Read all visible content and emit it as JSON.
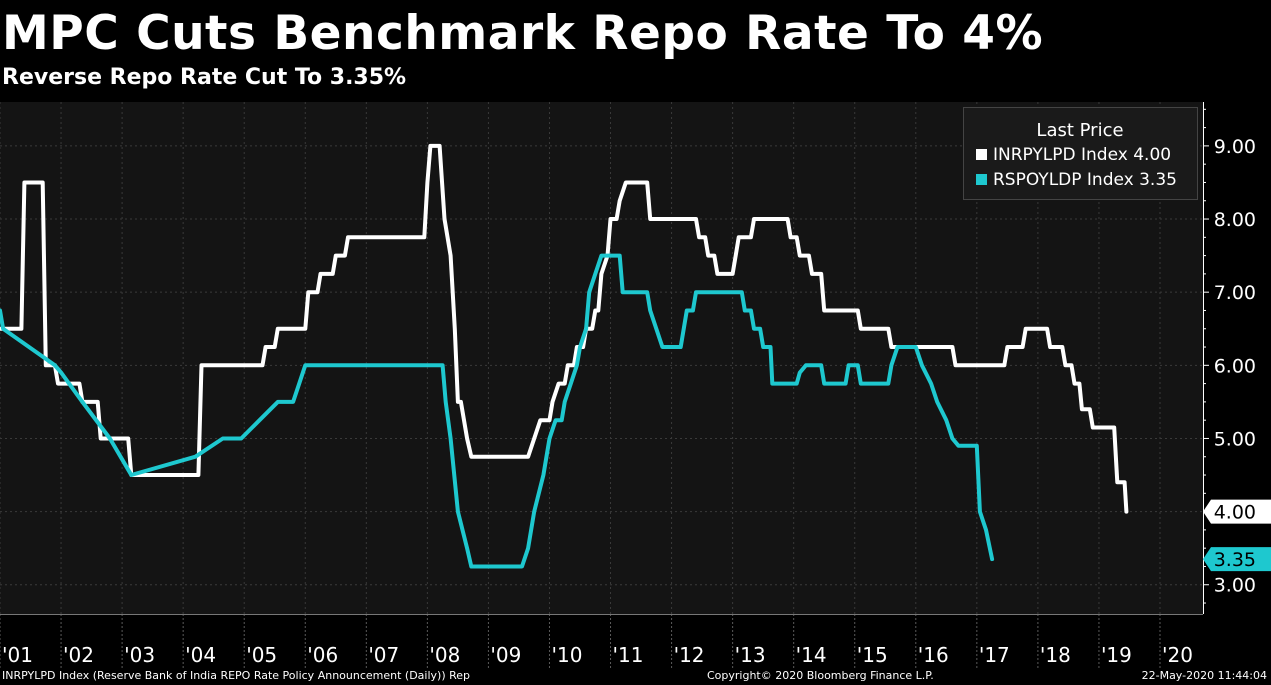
{
  "header": {
    "title": "MPC Cuts Benchmark Repo Rate To 4%",
    "subtitle": "Reverse Repo Rate Cut To 3.35%"
  },
  "footer": {
    "source": "INRPYLPD Index (Reserve Bank of India REPO Rate Policy Announcement (Daily)) Rep",
    "copyright": "Copyright© 2020 Bloomberg Finance L.P.",
    "timestamp": "22-May-2020 11:44:04"
  },
  "colors": {
    "background": "#000000",
    "plot_background": "#141414",
    "grid": "#3a3a3a",
    "repo": "#ffffff",
    "reverse_repo": "#1ec8cf"
  },
  "chart_data": {
    "type": "line",
    "title": "MPC Cuts Benchmark Repo Rate To 4%",
    "subtitle": "Reverse Repo Rate Cut To 3.35%",
    "xlabel": "",
    "ylabel": "",
    "xlim": [
      2001.0,
      2020.65
    ],
    "ylim": [
      2.6,
      9.6
    ],
    "yticks": [
      3,
      4,
      5,
      6,
      7,
      8,
      9
    ],
    "ytick_labels": [
      "3.00",
      "4.00",
      "5.00",
      "6.00",
      "7.00",
      "8.00",
      "9.00"
    ],
    "xticks": [
      {
        "label": "'01",
        "x": 2001.0
      },
      {
        "label": "'02",
        "x": 2002.0
      },
      {
        "label": "'03",
        "x": 2003.0
      },
      {
        "label": "'04",
        "x": 2004.0
      },
      {
        "label": "'05",
        "x": 2005.0
      },
      {
        "label": "'06",
        "x": 2006.0
      },
      {
        "label": "'07",
        "x": 2007.0
      },
      {
        "label": "'08",
        "x": 2008.0
      },
      {
        "label": "'09",
        "x": 2009.0
      },
      {
        "label": "'10",
        "x": 2010.0
      },
      {
        "label": "'11",
        "x": 2011.0
      },
      {
        "label": "'12",
        "x": 2012.0
      },
      {
        "label": "'13",
        "x": 2013.0
      },
      {
        "label": "'14",
        "x": 2014.0
      },
      {
        "label": "'15",
        "x": 2015.0
      },
      {
        "label": "'16",
        "x": 2016.0
      },
      {
        "label": "'17",
        "x": 2017.0
      },
      {
        "label": "'18",
        "x": 2018.0
      },
      {
        "label": "'19",
        "x": 2019.0
      },
      {
        "label": "'20",
        "x": 2020.0
      }
    ],
    "grid": true,
    "legend": {
      "title": "Last Price",
      "position": "top-right",
      "entries": [
        "INRPYLPD Index 4.00",
        "RSPOYLDP Index 3.35"
      ]
    },
    "series": [
      {
        "name": "INRPYLPD Index",
        "color": "#ffffff",
        "last_label": "4.00",
        "points": [
          [
            2001.0,
            6.5
          ],
          [
            2001.35,
            6.5
          ],
          [
            2001.4,
            8.5
          ],
          [
            2001.7,
            8.5
          ],
          [
            2001.75,
            6.0
          ],
          [
            2001.9,
            6.0
          ],
          [
            2001.95,
            5.75
          ],
          [
            2002.3,
            5.75
          ],
          [
            2002.35,
            5.5
          ],
          [
            2002.6,
            5.5
          ],
          [
            2002.65,
            5.0
          ],
          [
            2003.1,
            5.0
          ],
          [
            2003.15,
            4.5
          ],
          [
            2004.25,
            4.5
          ],
          [
            2004.3,
            6.0
          ],
          [
            2005.3,
            6.0
          ],
          [
            2005.35,
            6.25
          ],
          [
            2005.5,
            6.25
          ],
          [
            2005.55,
            6.5
          ],
          [
            2006.0,
            6.5
          ],
          [
            2006.05,
            7.0
          ],
          [
            2006.2,
            7.0
          ],
          [
            2006.25,
            7.25
          ],
          [
            2006.45,
            7.25
          ],
          [
            2006.5,
            7.5
          ],
          [
            2006.65,
            7.5
          ],
          [
            2006.7,
            7.75
          ],
          [
            2007.95,
            7.75
          ],
          [
            2008.0,
            8.5
          ],
          [
            2008.05,
            9.0
          ],
          [
            2008.2,
            9.0
          ],
          [
            2008.28,
            8.0
          ],
          [
            2008.38,
            7.5
          ],
          [
            2008.45,
            6.5
          ],
          [
            2008.5,
            5.5
          ],
          [
            2008.55,
            5.5
          ],
          [
            2008.65,
            5.0
          ],
          [
            2008.72,
            4.75
          ],
          [
            2009.65,
            4.75
          ],
          [
            2009.75,
            5.0
          ],
          [
            2009.85,
            5.25
          ],
          [
            2010.0,
            5.25
          ],
          [
            2010.05,
            5.5
          ],
          [
            2010.15,
            5.75
          ],
          [
            2010.25,
            5.75
          ],
          [
            2010.3,
            6.0
          ],
          [
            2010.4,
            6.0
          ],
          [
            2010.45,
            6.25
          ],
          [
            2010.55,
            6.25
          ],
          [
            2010.6,
            6.5
          ],
          [
            2010.7,
            6.5
          ],
          [
            2010.75,
            6.75
          ],
          [
            2010.8,
            6.75
          ],
          [
            2010.85,
            7.25
          ],
          [
            2010.95,
            7.5
          ],
          [
            2011.0,
            8.0
          ],
          [
            2011.1,
            8.0
          ],
          [
            2011.15,
            8.25
          ],
          [
            2011.25,
            8.5
          ],
          [
            2011.6,
            8.5
          ],
          [
            2011.65,
            8.0
          ],
          [
            2012.4,
            8.0
          ],
          [
            2012.45,
            7.75
          ],
          [
            2012.55,
            7.75
          ],
          [
            2012.6,
            7.5
          ],
          [
            2012.7,
            7.5
          ],
          [
            2012.75,
            7.25
          ],
          [
            2013.0,
            7.25
          ],
          [
            2013.05,
            7.5
          ],
          [
            2013.1,
            7.75
          ],
          [
            2013.3,
            7.75
          ],
          [
            2013.35,
            8.0
          ],
          [
            2013.9,
            8.0
          ],
          [
            2013.95,
            7.75
          ],
          [
            2014.05,
            7.75
          ],
          [
            2014.1,
            7.5
          ],
          [
            2014.25,
            7.5
          ],
          [
            2014.3,
            7.25
          ],
          [
            2014.45,
            7.25
          ],
          [
            2014.5,
            6.75
          ],
          [
            2015.05,
            6.75
          ],
          [
            2015.1,
            6.5
          ],
          [
            2015.55,
            6.5
          ],
          [
            2015.6,
            6.25
          ],
          [
            2016.6,
            6.25
          ],
          [
            2016.65,
            6.0
          ],
          [
            2017.45,
            6.0
          ],
          [
            2017.5,
            6.25
          ],
          [
            2017.75,
            6.25
          ],
          [
            2017.8,
            6.5
          ],
          [
            2018.15,
            6.5
          ],
          [
            2018.2,
            6.25
          ],
          [
            2018.4,
            6.25
          ],
          [
            2018.45,
            6.0
          ],
          [
            2018.55,
            6.0
          ],
          [
            2018.6,
            5.75
          ],
          [
            2018.68,
            5.75
          ],
          [
            2018.72,
            5.4
          ],
          [
            2018.85,
            5.4
          ],
          [
            2018.9,
            5.15
          ],
          [
            2019.25,
            5.15
          ],
          [
            2019.3,
            4.4
          ],
          [
            2019.42,
            4.4
          ],
          [
            2019.45,
            4.0
          ]
        ]
      },
      {
        "name": "RSPOYLDP Index",
        "color": "#1ec8cf",
        "last_label": "3.35",
        "points": [
          [
            2001.0,
            6.75
          ],
          [
            2001.05,
            6.5
          ],
          [
            2001.9,
            6.0
          ],
          [
            2002.0,
            5.9
          ],
          [
            2002.35,
            5.5
          ],
          [
            2002.8,
            5.0
          ],
          [
            2003.15,
            4.5
          ],
          [
            2004.2,
            4.75
          ],
          [
            2004.65,
            5.0
          ],
          [
            2004.95,
            5.0
          ],
          [
            2005.25,
            5.25
          ],
          [
            2005.55,
            5.5
          ],
          [
            2005.8,
            5.5
          ],
          [
            2005.9,
            5.75
          ],
          [
            2006.0,
            6.0
          ],
          [
            2008.25,
            6.0
          ],
          [
            2008.3,
            5.5
          ],
          [
            2008.38,
            5.0
          ],
          [
            2008.5,
            4.0
          ],
          [
            2008.65,
            3.5
          ],
          [
            2008.72,
            3.25
          ],
          [
            2009.55,
            3.25
          ],
          [
            2009.65,
            3.5
          ],
          [
            2009.75,
            4.0
          ],
          [
            2009.9,
            4.5
          ],
          [
            2010.0,
            5.0
          ],
          [
            2010.1,
            5.25
          ],
          [
            2010.2,
            5.25
          ],
          [
            2010.25,
            5.5
          ],
          [
            2010.35,
            5.75
          ],
          [
            2010.45,
            6.0
          ],
          [
            2010.5,
            6.25
          ],
          [
            2010.6,
            6.5
          ],
          [
            2010.65,
            7.0
          ],
          [
            2010.75,
            7.25
          ],
          [
            2010.85,
            7.5
          ],
          [
            2011.15,
            7.5
          ],
          [
            2011.2,
            7.0
          ],
          [
            2011.6,
            7.0
          ],
          [
            2011.65,
            6.75
          ],
          [
            2011.75,
            6.5
          ],
          [
            2011.85,
            6.25
          ],
          [
            2012.15,
            6.25
          ],
          [
            2012.25,
            6.75
          ],
          [
            2012.35,
            6.75
          ],
          [
            2012.4,
            7.0
          ],
          [
            2013.15,
            7.0
          ],
          [
            2013.2,
            6.75
          ],
          [
            2013.3,
            6.75
          ],
          [
            2013.35,
            6.5
          ],
          [
            2013.45,
            6.5
          ],
          [
            2013.5,
            6.25
          ],
          [
            2013.62,
            6.25
          ],
          [
            2013.65,
            5.75
          ],
          [
            2014.05,
            5.75
          ],
          [
            2014.1,
            5.9
          ],
          [
            2014.2,
            6.0
          ],
          [
            2014.45,
            6.0
          ],
          [
            2014.5,
            5.75
          ],
          [
            2014.85,
            5.75
          ],
          [
            2014.9,
            6.0
          ],
          [
            2015.05,
            6.0
          ],
          [
            2015.1,
            5.75
          ],
          [
            2015.55,
            5.75
          ],
          [
            2015.6,
            6.0
          ],
          [
            2015.7,
            6.25
          ],
          [
            2016.0,
            6.25
          ],
          [
            2016.1,
            6.0
          ],
          [
            2016.25,
            5.75
          ],
          [
            2016.35,
            5.5
          ],
          [
            2016.5,
            5.25
          ],
          [
            2016.6,
            5.0
          ],
          [
            2016.7,
            4.9
          ],
          [
            2017.0,
            4.9
          ],
          [
            2017.05,
            4.0
          ],
          [
            2017.15,
            3.75
          ],
          [
            2017.25,
            3.35
          ]
        ]
      }
    ]
  }
}
